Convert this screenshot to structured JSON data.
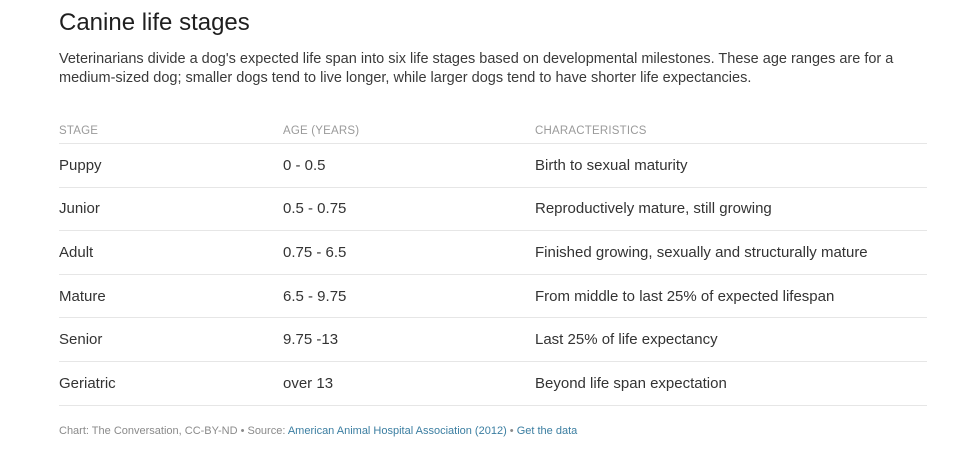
{
  "title": "Canine life stages",
  "description": "Veterinarians divide a dog's expected life span into six life stages based on developmental milestones. These age ranges are for a medium-sized dog; smaller dogs tend to live longer, while larger dogs tend to have shorter life expectancies.",
  "table": {
    "headers": [
      "STAGE",
      "AGE (YEARS)",
      "CHARACTERISTICS"
    ],
    "rows": [
      {
        "stage": "Puppy",
        "age": "0 - 0.5",
        "characteristics": "Birth to sexual maturity"
      },
      {
        "stage": "Junior",
        "age": "0.5 - 0.75",
        "characteristics": "Reproductively mature, still growing"
      },
      {
        "stage": "Adult",
        "age": "0.75 - 6.5",
        "characteristics": "Finished growing, sexually and structurally mature"
      },
      {
        "stage": "Mature",
        "age": "6.5 - 9.75",
        "characteristics": "From middle to last 25% of expected lifespan"
      },
      {
        "stage": "Senior",
        "age": "9.75 -13",
        "characteristics": "Last 25% of life expectancy"
      },
      {
        "stage": "Geriatric",
        "age": "over 13",
        "characteristics": "Beyond life span expectation"
      }
    ]
  },
  "footer": {
    "credit": "Chart: The Conversation, CC-BY-ND",
    "sep1": " • Source: ",
    "source_link": "American Animal Hospital Association (2012)",
    "sep2": " • ",
    "data_link": "Get the data"
  },
  "colors": {
    "link": "#3b7ea1",
    "header_text": "#9a9a9a",
    "divider": "#e6e6e6"
  }
}
